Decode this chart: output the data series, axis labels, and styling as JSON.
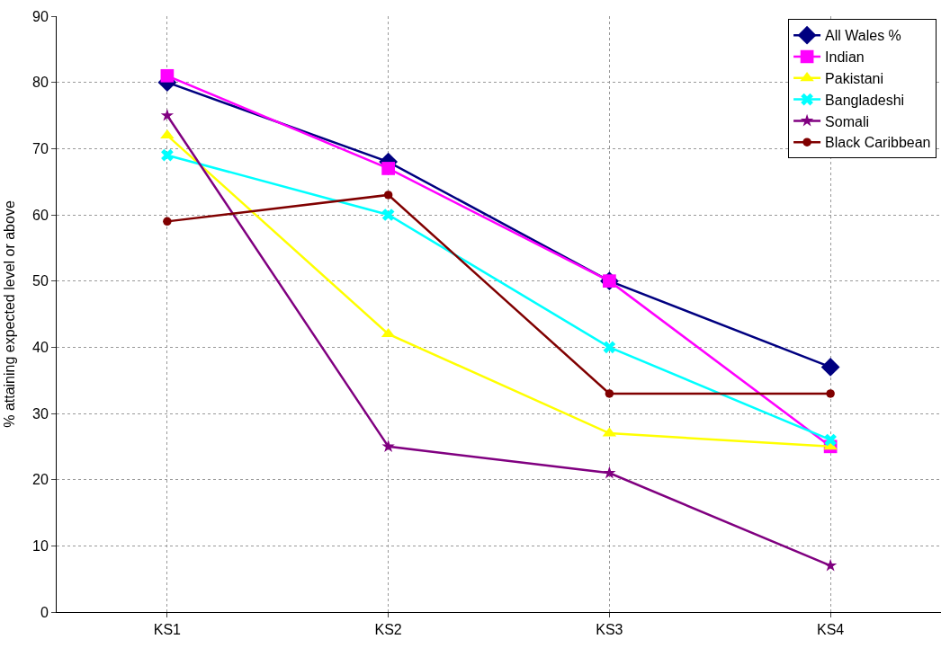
{
  "chart_data": {
    "type": "line",
    "ylabel": "% attaining expected level or above",
    "categories": [
      "KS1",
      "KS2",
      "KS3",
      "KS4"
    ],
    "series": [
      {
        "name": "All Wales %",
        "color": "#000080",
        "marker": "diamond",
        "values": [
          80,
          68,
          50,
          37
        ]
      },
      {
        "name": "Indian",
        "color": "#ff00ff",
        "marker": "square",
        "values": [
          81,
          67,
          50,
          25
        ]
      },
      {
        "name": "Pakistani",
        "color": "#ffff00",
        "marker": "triangle",
        "values": [
          72,
          42,
          27,
          25
        ]
      },
      {
        "name": "Bangladeshi",
        "color": "#00ffff",
        "marker": "cross",
        "values": [
          69,
          60,
          40,
          26
        ]
      },
      {
        "name": "Somali",
        "color": "#800080",
        "marker": "star",
        "values": [
          75,
          25,
          21,
          7
        ]
      },
      {
        "name": "Black Caribbean",
        "color": "#800000",
        "marker": "circle",
        "values": [
          59,
          63,
          33,
          33
        ]
      }
    ],
    "ylim": [
      0,
      90
    ],
    "yticks": [
      0,
      10,
      20,
      30,
      40,
      50,
      60,
      70,
      80,
      90
    ],
    "grid": true,
    "legend": "top right",
    "line_style": "solid"
  }
}
